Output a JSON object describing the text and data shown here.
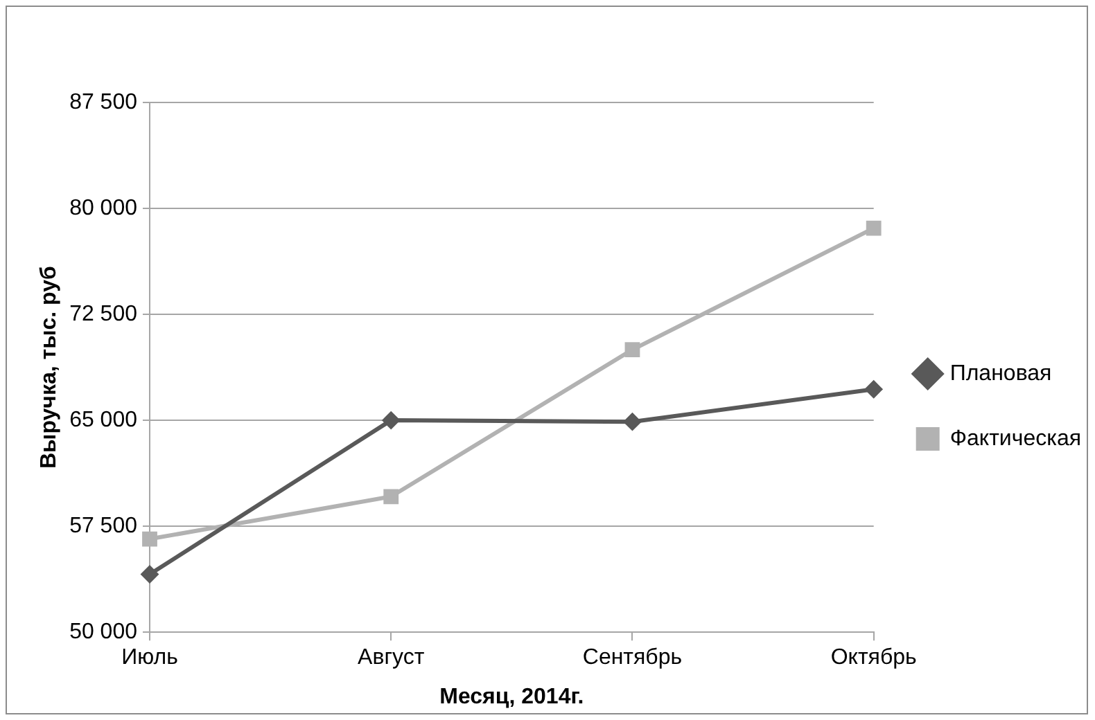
{
  "chart_data": {
    "type": "line",
    "xlabel": "Месяц, 2014г.",
    "ylabel": "Выручка, тыс. руб",
    "categories": [
      "Июль",
      "Август",
      "Сентябрь",
      "Октябрь"
    ],
    "series": [
      {
        "name": "Плановая",
        "color": "#595959",
        "marker": "diamond",
        "values": [
          54100,
          65000,
          64900,
          67200
        ]
      },
      {
        "name": "Фактическая",
        "color": "#b2b2b2",
        "marker": "square",
        "values": [
          56600,
          59600,
          70000,
          78600
        ]
      }
    ],
    "ylim": [
      50000,
      87500
    ],
    "yticks": [
      {
        "value": 50000,
        "label": "50 000"
      },
      {
        "value": 57500,
        "label": "57 500"
      },
      {
        "value": 65000,
        "label": "65 000"
      },
      {
        "value": 72500,
        "label": "72 500"
      },
      {
        "value": 80000,
        "label": "80 000"
      },
      {
        "value": 87500,
        "label": "87 500"
      }
    ],
    "grid": "y",
    "legend": "right",
    "line_style": "solid"
  }
}
